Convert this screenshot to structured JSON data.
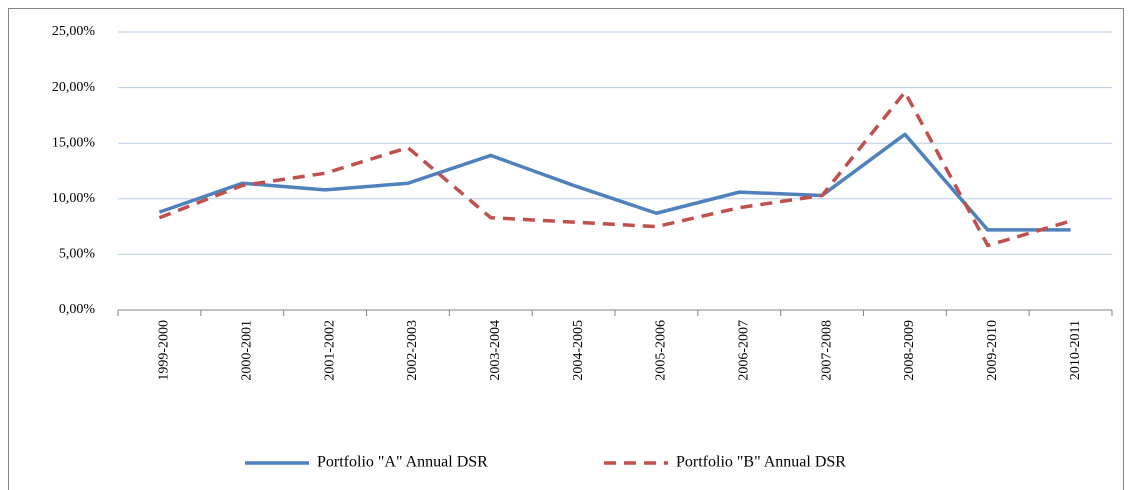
{
  "chart_data": {
    "type": "line",
    "categories": [
      "1999-2000",
      "2000-2001",
      "2001-2002",
      "2002-2003",
      "2003-2004",
      "2004-2005",
      "2005-2006",
      "2006-2007",
      "2007-2008",
      "2008-2009",
      "2009-2010",
      "2010-2011"
    ],
    "series": [
      {
        "name": "Portfolio \"A\" Annual DSR",
        "color": "#4f81bd",
        "dash": false,
        "values": [
          8.8,
          11.4,
          10.8,
          11.4,
          13.9,
          11.2,
          8.7,
          10.6,
          10.3,
          15.8,
          7.2,
          7.2
        ]
      },
      {
        "name": "Portfolio \"B\" Annual DSR",
        "color": "#c0504d",
        "dash": true,
        "values": [
          8.3,
          11.2,
          12.3,
          14.6,
          8.3,
          7.9,
          7.5,
          9.2,
          10.3,
          19.6,
          5.8,
          8.0
        ]
      }
    ],
    "ylim": [
      0,
      25
    ],
    "yticks": [
      {
        "value": 0,
        "label": "0,00%"
      },
      {
        "value": 5,
        "label": "5,00%"
      },
      {
        "value": 10,
        "label": "10,00%"
      },
      {
        "value": 15,
        "label": "15,00%"
      },
      {
        "value": 20,
        "label": "20,00%"
      },
      {
        "value": 25,
        "label": "25,00%"
      }
    ],
    "grid": true,
    "legend": "bottom"
  }
}
